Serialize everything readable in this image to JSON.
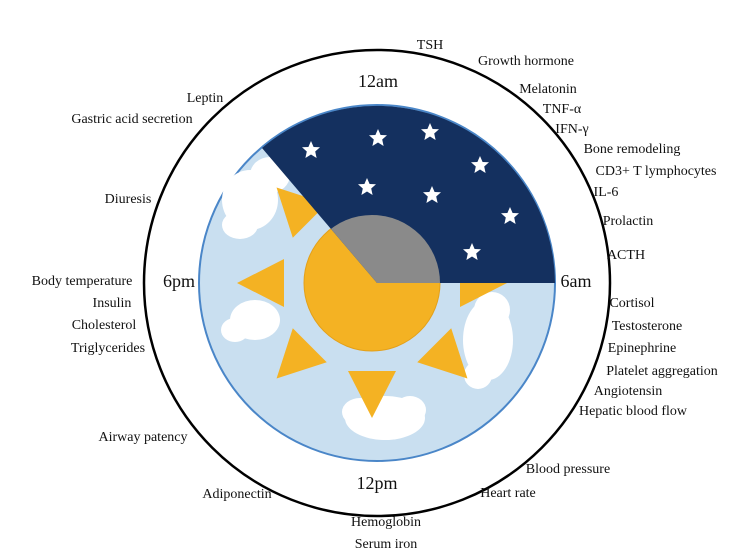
{
  "clock": {
    "top": "12am",
    "right": "6am",
    "bottom": "12pm",
    "left": "6pm"
  },
  "labels": [
    "TSH",
    "Growth hormone",
    "Melatonin",
    "TNF-α",
    "IFN-γ",
    "Bone remodeling",
    "CD3+ T lymphocytes",
    "IL-6",
    "Prolactin",
    "ACTH",
    "Cortisol",
    "Testosterone",
    "Epinephrine",
    "Platelet aggregation",
    "Angiotensin",
    "Hepatic blood flow",
    "Blood pressure",
    "Heart rate",
    "Hemoglobin",
    "Serum iron",
    "Adiponectin",
    "Airway patency",
    "Triglycerides",
    "Cholesterol",
    "Insulin",
    "Body temperature",
    "Diuresis",
    "Gastric acid secretion",
    "Leptin"
  ]
}
